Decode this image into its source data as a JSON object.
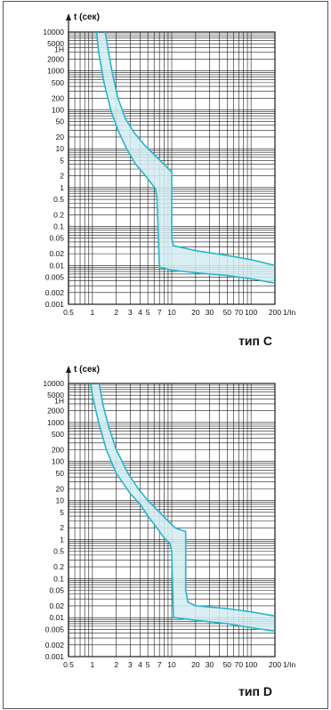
{
  "colors": {
    "curve": "#25b6cc",
    "band": "#d4ecf2",
    "grid": "#1a1a1a",
    "text": "#111111"
  },
  "chart_data": [
    {
      "type": "line",
      "title": "тип C",
      "ylabel": "t (сек)",
      "xlabel": "1/In",
      "x_scale": "log",
      "y_scale": "log",
      "xlim": [
        0.5,
        200
      ],
      "ylim": [
        0.001,
        10000
      ],
      "x_ticks": [
        0.5,
        1,
        2,
        3,
        4,
        5,
        7,
        10,
        20,
        30,
        50,
        70,
        100,
        200
      ],
      "x_tick_labels": [
        "0.5",
        "1",
        "2",
        "3",
        "4",
        "5",
        "7",
        "10",
        "20",
        "30",
        "50",
        "70",
        "100",
        "200"
      ],
      "y_ticks": [
        0.001,
        0.002,
        0.005,
        0.01,
        0.02,
        0.05,
        0.1,
        0.2,
        0.5,
        1,
        2,
        5,
        10,
        20,
        50,
        100,
        200,
        500,
        1000,
        2000,
        3600,
        5000,
        10000
      ],
      "y_tick_labels": [
        "0.001",
        "0.002",
        "0.005",
        "0.01",
        "0.02",
        "0.05",
        "0.1",
        "0.2",
        "0.5",
        "1",
        "2",
        "5",
        "10",
        "20",
        "50",
        "100",
        "200",
        "500",
        "1000",
        "2000",
        "1Н",
        "5000",
        "10000"
      ],
      "series": [
        {
          "role": "lower-boundary",
          "x": [
            1.13,
            1.2,
            1.4,
            1.7,
            2.1,
            2.7,
            3.5,
            4.5,
            5.5,
            6.2,
            6.5,
            7,
            10,
            20,
            50,
            100,
            200
          ],
          "y": [
            10000,
            3000,
            500,
            100,
            30,
            10,
            4,
            2.2,
            1.3,
            0.95,
            0.6,
            0.009,
            0.0075,
            0.0065,
            0.0055,
            0.0045,
            0.0035
          ]
        },
        {
          "role": "upper-boundary",
          "x": [
            1.45,
            1.6,
            1.8,
            2.1,
            2.6,
            3.4,
            4.6,
            6.5,
            8.5,
            10,
            10,
            10.5,
            20,
            50,
            100,
            200
          ],
          "y": [
            10000,
            3000,
            800,
            200,
            60,
            25,
            12,
            6,
            3.5,
            2.5,
            0.05,
            0.032,
            0.024,
            0.018,
            0.014,
            0.01
          ]
        }
      ]
    },
    {
      "type": "line",
      "title": "тип D",
      "ylabel": "t (сек)",
      "xlabel": "1/In",
      "x_scale": "log",
      "y_scale": "log",
      "xlim": [
        0.5,
        200
      ],
      "ylim": [
        0.001,
        10000
      ],
      "x_ticks": [
        0.5,
        1,
        2,
        3,
        4,
        5,
        7,
        10,
        20,
        30,
        50,
        70,
        100,
        200
      ],
      "x_tick_labels": [
        "0.5",
        "1",
        "2",
        "3",
        "4",
        "5",
        "7",
        "10",
        "20",
        "30",
        "50",
        "70",
        "100",
        "200"
      ],
      "y_ticks": [
        0.001,
        0.002,
        0.005,
        0.01,
        0.02,
        0.05,
        0.1,
        0.2,
        0.5,
        1,
        2,
        5,
        10,
        20,
        50,
        100,
        200,
        500,
        1000,
        2000,
        3600,
        5000,
        10000
      ],
      "y_tick_labels": [
        "0.001",
        "0.002",
        "0.005",
        "0.01",
        "0.02",
        "0.05",
        "0.1",
        "0.2",
        "0.5",
        "1",
        "2",
        "5",
        "10",
        "20",
        "50",
        "100",
        "200",
        "500",
        "1000",
        "2000",
        "1Н",
        "5000",
        "10000"
      ],
      "series": [
        {
          "role": "lower-boundary",
          "x": [
            0.95,
            1.0,
            1.2,
            1.5,
            2.0,
            3.0,
            4.0,
            5.0,
            6.5,
            8.0,
            9.5,
            10,
            10.5,
            20,
            50,
            100,
            200
          ],
          "y": [
            10000,
            5000,
            1000,
            200,
            50,
            15,
            8,
            4,
            2,
            1.1,
            0.8,
            0.5,
            0.01,
            0.0085,
            0.007,
            0.0055,
            0.0045
          ]
        },
        {
          "role": "upper-boundary",
          "x": [
            1.22,
            1.35,
            1.6,
            2.0,
            2.8,
            3.8,
            5.0,
            7.0,
            9.0,
            11,
            15,
            15,
            16,
            20,
            50,
            100,
            200
          ],
          "y": [
            10000,
            3000,
            800,
            200,
            50,
            20,
            10,
            5,
            3,
            2,
            1.6,
            0.05,
            0.025,
            0.02,
            0.017,
            0.014,
            0.011
          ]
        }
      ]
    }
  ]
}
